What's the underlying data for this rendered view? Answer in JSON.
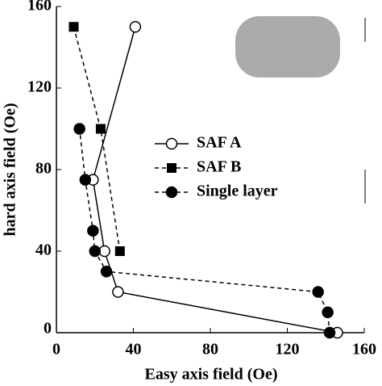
{
  "chart_data": {
    "type": "line",
    "xlabel": "Easy axis field (Oe)",
    "ylabel": "hard axis field (Oe)",
    "xlim": [
      0,
      160
    ],
    "ylim": [
      0,
      160
    ],
    "xticks": [
      0,
      40,
      80,
      120,
      160
    ],
    "yticks": [
      0,
      40,
      80,
      120,
      160
    ],
    "series": [
      {
        "name": "SAF A",
        "color": "#000000",
        "marker": "open-circle",
        "line": "solid",
        "x": [
          146,
          32,
          25,
          19,
          41
        ],
        "values": [
          0,
          20,
          40,
          75,
          150
        ]
      },
      {
        "name": "SAF B",
        "color": "#000000",
        "marker": "square",
        "line": "dashed",
        "x": [
          33,
          23,
          9
        ],
        "values": [
          40,
          100,
          150
        ]
      },
      {
        "name": "Single layer",
        "color": "#000000",
        "marker": "filled-circle",
        "line": "dashed",
        "x": [
          142,
          141,
          136,
          26,
          20,
          19,
          15,
          12
        ],
        "values": [
          0,
          10,
          20,
          30,
          40,
          50,
          75,
          100
        ]
      }
    ]
  }
}
